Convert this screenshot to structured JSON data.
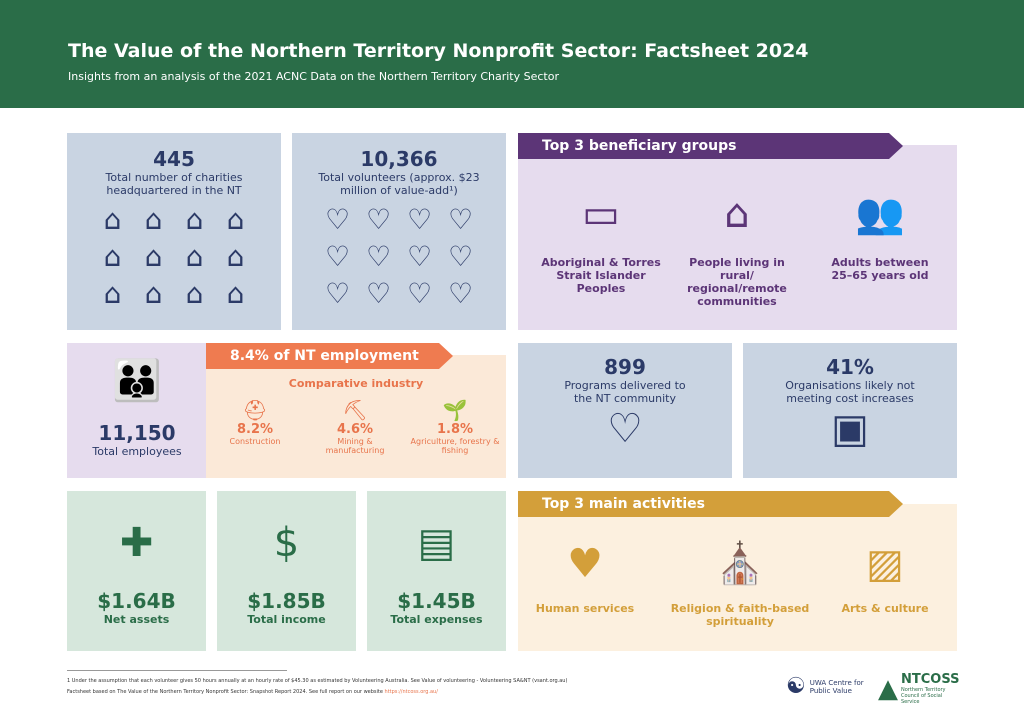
{
  "header": {
    "title": "The Value of the Northern Territory Nonprofit Sector: Factsheet 2024",
    "subtitle": "Insights from an analysis of the 2021 ACNC Data on the Northern Territory Charity Sector"
  },
  "charities": {
    "value": "445",
    "label": "Total number of charities headquartered in the NT"
  },
  "volunteers": {
    "value": "10,366",
    "label": "Total volunteers (approx. $23 million of value-add¹)"
  },
  "beneficiaries": {
    "title": "Top 3 beneficiary groups",
    "items": [
      {
        "label": "Aboriginal & Torres Strait Islander Peoples"
      },
      {
        "label": "People living in rural/ regional/remote communities"
      },
      {
        "label": "Adults between 25–65 years old"
      }
    ]
  },
  "employees": {
    "value": "11,150",
    "label": "Total employees"
  },
  "employment": {
    "title": "8.4% of NT employment",
    "subtitle": "Comparative industry",
    "items": [
      {
        "value": "8.2%",
        "label": "Construction"
      },
      {
        "value": "4.6%",
        "label": "Mining & manufacturing"
      },
      {
        "value": "1.8%",
        "label": "Agriculture, forestry & fishing"
      }
    ]
  },
  "programs": {
    "value": "899",
    "label": "Programs delivered to the NT community"
  },
  "costs": {
    "value": "41%",
    "label": "Organisations likely not meeting cost increases"
  },
  "finance": [
    {
      "value": "$1.64B",
      "label": "Net assets"
    },
    {
      "value": "$1.85B",
      "label": "Total income"
    },
    {
      "value": "$1.45B",
      "label": "Total expenses"
    }
  ],
  "activities": {
    "title": "Top 3 main activities",
    "items": [
      {
        "label": "Human services"
      },
      {
        "label": "Religion & faith-based spirituality"
      },
      {
        "label": "Arts & culture"
      }
    ]
  },
  "footer": {
    "note1": "1 Under the assumption that each volunteer gives 50 hours annually at an hourly rate of $45.30 as estimated by Volunteering Australia. See Value of volunteering - Volunteering SA&NT (vsant.org.au)",
    "note2": "Factsheet based on The Value of the Northern Territory Nonprofit Sector: Snapshot Report 2024. See full report on our website ",
    "link": "https://ntcoss.org.au/",
    "logo1": "UWA Centre for Public Value",
    "logo2": "NTCOSS",
    "logo2_sub": "Northern Territory Council of Social Service"
  }
}
